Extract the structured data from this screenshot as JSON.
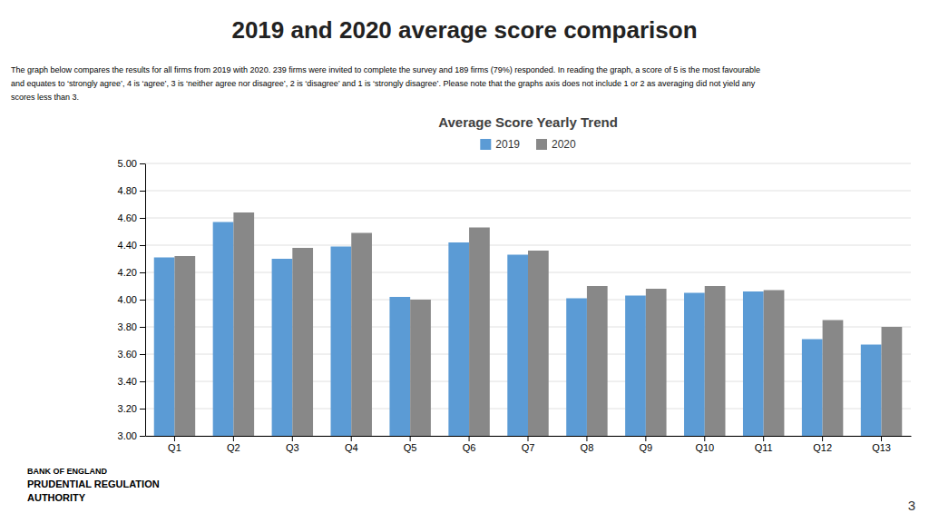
{
  "title": "2019 and 2020 average score comparison",
  "subtitle": [
    "The graph below compares the results for all firms from 2019 with 2020.  239 firms were invited to complete the survey and 189 firms (79%) responded.  In reading the graph, a score of 5 is the most favourable",
    "and equates to ‘strongly agree’, 4 is ‘agree’, 3 is ‘neither agree nor disagree’, 2 is ‘disagree’ and 1 is ‘strongly disagree’.  Please note that the graphs axis does not include 1 or 2 as averaging did not yield any",
    "scores less than 3."
  ],
  "annotations": [
    "BANK OF ENGLAND",
    "PRUDENTIAL REGULATION",
    "AUTHORITY",
    "3"
  ],
  "chart_data": {
    "type": "bar",
    "title": "Average Score Yearly Trend",
    "categories": [
      "Q1",
      "Q2",
      "Q3",
      "Q4",
      "Q5",
      "Q6",
      "Q7",
      "Q8",
      "Q9",
      "Q10",
      "Q11",
      "Q12",
      "Q13"
    ],
    "series": [
      {
        "name": "2019",
        "color": "#5b9bd5",
        "values": [
          4.31,
          4.57,
          4.3,
          4.39,
          4.02,
          4.42,
          4.33,
          4.01,
          4.03,
          4.05,
          4.06,
          3.71,
          3.67
        ]
      },
      {
        "name": "2020",
        "color": "#888888",
        "values": [
          4.32,
          4.64,
          4.38,
          4.49,
          4.0,
          4.53,
          4.36,
          4.1,
          4.08,
          4.1,
          4.07,
          3.85,
          3.8
        ]
      }
    ],
    "ylim": [
      3,
      5
    ],
    "yticks": [
      {
        "value": 3,
        "label": "3.00"
      },
      {
        "value": 3.2,
        "label": "3.20"
      },
      {
        "value": 3.4,
        "label": "3.40"
      },
      {
        "value": 3.6,
        "label": "3.60"
      },
      {
        "value": 3.8,
        "label": "3.80"
      },
      {
        "value": 4,
        "label": "4.00"
      },
      {
        "value": 4.2,
        "label": "4.20"
      },
      {
        "value": 4.4,
        "label": "4.40"
      },
      {
        "value": 4.6,
        "label": "4.60"
      },
      {
        "value": 4.8,
        "label": "4.80"
      },
      {
        "value": 5,
        "label": "5.00"
      }
    ],
    "grid": true,
    "legend": "top"
  }
}
